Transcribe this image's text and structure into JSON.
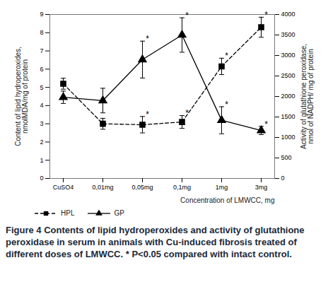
{
  "chart_data": {
    "type": "line",
    "categories": [
      "CuSO4",
      "0,01mg",
      "0,05mg",
      "0,1mg",
      "1mg",
      "3mg"
    ],
    "x_label": "Concentration of LMWCC, mg",
    "y_label": "Content of lipid hydroperoxides, nmolMDA/mg of protein",
    "y2_label": "Activity of glutathione peroxidase, nmol of NADPH/ mg of protein",
    "ylim": [
      0,
      9
    ],
    "yticks": [
      0,
      1,
      2,
      3,
      4,
      5,
      6,
      7,
      8,
      9
    ],
    "y2lim": [
      0,
      4000
    ],
    "y2ticks": [
      0,
      500,
      1000,
      1500,
      2000,
      2500,
      3000,
      3500,
      4000
    ],
    "legend": "bottom left",
    "series": [
      {
        "name": "HPL",
        "color": "#000000",
        "marker": "square",
        "line_style": "dashed",
        "values": [
          5.2,
          3.0,
          2.95,
          3.1,
          6.15,
          8.3
        ],
        "errors": [
          0.3,
          0.3,
          0.45,
          0.35,
          0.45,
          0.55
        ],
        "significance_labels": [
          null,
          null,
          "*",
          "*",
          "*",
          "*"
        ]
      },
      {
        "name": "GP",
        "axis": "y2",
        "color": "#000000",
        "marker": "triangle",
        "line_style": "solid",
        "values": [
          1980,
          1900,
          2900,
          3500,
          1420,
          1170
        ],
        "errors": [
          150,
          300,
          450,
          420,
          330,
          100
        ],
        "significance_labels": [
          null,
          null,
          "*",
          "*",
          "*",
          "*"
        ]
      }
    ],
    "caption_label": "Figure 4",
    "caption": "Contents of lipid hydroperoxides and activity of glutathione peroxidase in serum in animals with Cu-induced fibrosis treated of different doses of LMWCC. * P<0.05 compared with intact control."
  }
}
